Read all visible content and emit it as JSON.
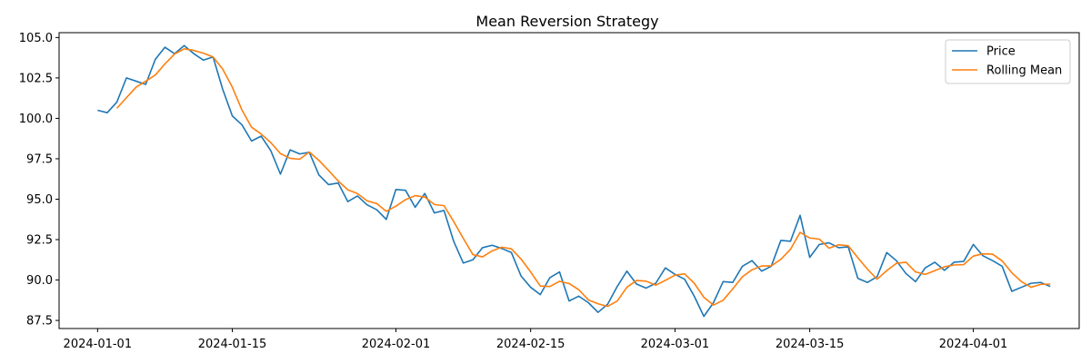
{
  "chart_data": {
    "type": "line",
    "title": "Mean Reversion Strategy",
    "xlabel": "",
    "ylabel": "",
    "x_start": "2024-01-01",
    "xlim": [
      "2023-12-28",
      "2024-04-12"
    ],
    "ylim": [
      87.0,
      105.3
    ],
    "x_ticks": [
      {
        "date": "2024-01-01",
        "label": "2024-01-01"
      },
      {
        "date": "2024-01-15",
        "label": "2024-01-15"
      },
      {
        "date": "2024-02-01",
        "label": "2024-02-01"
      },
      {
        "date": "2024-02-15",
        "label": "2024-02-15"
      },
      {
        "date": "2024-03-01",
        "label": "2024-03-01"
      },
      {
        "date": "2024-03-15",
        "label": "2024-03-15"
      },
      {
        "date": "2024-04-01",
        "label": "2024-04-01"
      }
    ],
    "y_ticks": [
      {
        "value": 87.5,
        "label": "87.5"
      },
      {
        "value": 90.0,
        "label": "90.0"
      },
      {
        "value": 92.5,
        "label": "92.5"
      },
      {
        "value": 95.0,
        "label": "95.0"
      },
      {
        "value": 97.5,
        "label": "97.5"
      },
      {
        "value": 100.0,
        "label": "100.0"
      },
      {
        "value": 102.5,
        "label": "102.5"
      },
      {
        "value": 105.0,
        "label": "105.0"
      }
    ],
    "grid": false,
    "legend": "top-right",
    "series": [
      {
        "name": "Price",
        "color": "#1f77b4",
        "start": "2024-01-01",
        "values": [
          100.5,
          100.35,
          101.0,
          102.5,
          102.3,
          102.1,
          103.65,
          104.4,
          104.0,
          104.5,
          104.0,
          103.6,
          103.8,
          101.8,
          100.15,
          99.6,
          98.6,
          98.9,
          98.0,
          96.55,
          98.05,
          97.8,
          97.9,
          96.5,
          95.9,
          96.0,
          94.85,
          95.2,
          94.65,
          94.35,
          93.75,
          95.6,
          95.55,
          94.5,
          95.35,
          94.15,
          94.3,
          92.4,
          91.05,
          91.25,
          92.0,
          92.15,
          91.95,
          91.7,
          90.25,
          89.55,
          89.1,
          90.15,
          90.5,
          88.7,
          89.0,
          88.6,
          88.0,
          88.5,
          89.6,
          90.55,
          89.75,
          89.5,
          89.8,
          90.75,
          90.35,
          90.05,
          89.0,
          87.75,
          88.6,
          89.9,
          89.85,
          90.85,
          91.2,
          90.55,
          90.85,
          92.45,
          92.4,
          94.0,
          91.4,
          92.2,
          92.3,
          92.0,
          92.05,
          90.1,
          89.85,
          90.2,
          91.7,
          91.2,
          90.4,
          89.9,
          90.75,
          91.1,
          90.6,
          91.1,
          91.15,
          92.2,
          91.5,
          91.2,
          90.85,
          89.3,
          89.55,
          89.8,
          89.85,
          89.6
        ]
      },
      {
        "name": "Rolling Mean",
        "color": "#ff7f0e",
        "start": "2024-01-03",
        "values": [
          100.62,
          101.28,
          101.93,
          102.3,
          102.68,
          103.37,
          103.98,
          104.3,
          104.2,
          104.03,
          103.8,
          103.05,
          101.93,
          100.52,
          99.45,
          99.03,
          98.5,
          97.82,
          97.53,
          97.47,
          97.92,
          97.4,
          96.78,
          96.13,
          95.58,
          95.35,
          94.9,
          94.73,
          94.25,
          94.57,
          94.97,
          95.22,
          95.13,
          94.67,
          94.6,
          93.62,
          92.58,
          91.57,
          91.43,
          91.8,
          92.03,
          91.93,
          91.3,
          90.5,
          89.63,
          89.6,
          89.92,
          89.78,
          89.4,
          88.77,
          88.53,
          88.37,
          88.7,
          89.55,
          89.97,
          89.93,
          89.68,
          89.98,
          90.3,
          90.38,
          89.8,
          88.93,
          88.45,
          88.75,
          89.45,
          90.2,
          90.63,
          90.87,
          90.87,
          91.28,
          91.9,
          92.95,
          92.6,
          92.53,
          91.97,
          92.18,
          92.12,
          91.38,
          90.67,
          90.05,
          90.58,
          91.03,
          91.1,
          90.5,
          90.35,
          90.58,
          90.82,
          90.93,
          90.95,
          91.48,
          91.62,
          91.6,
          91.18,
          90.45,
          89.9,
          89.55,
          89.73,
          89.75
        ]
      }
    ]
  }
}
